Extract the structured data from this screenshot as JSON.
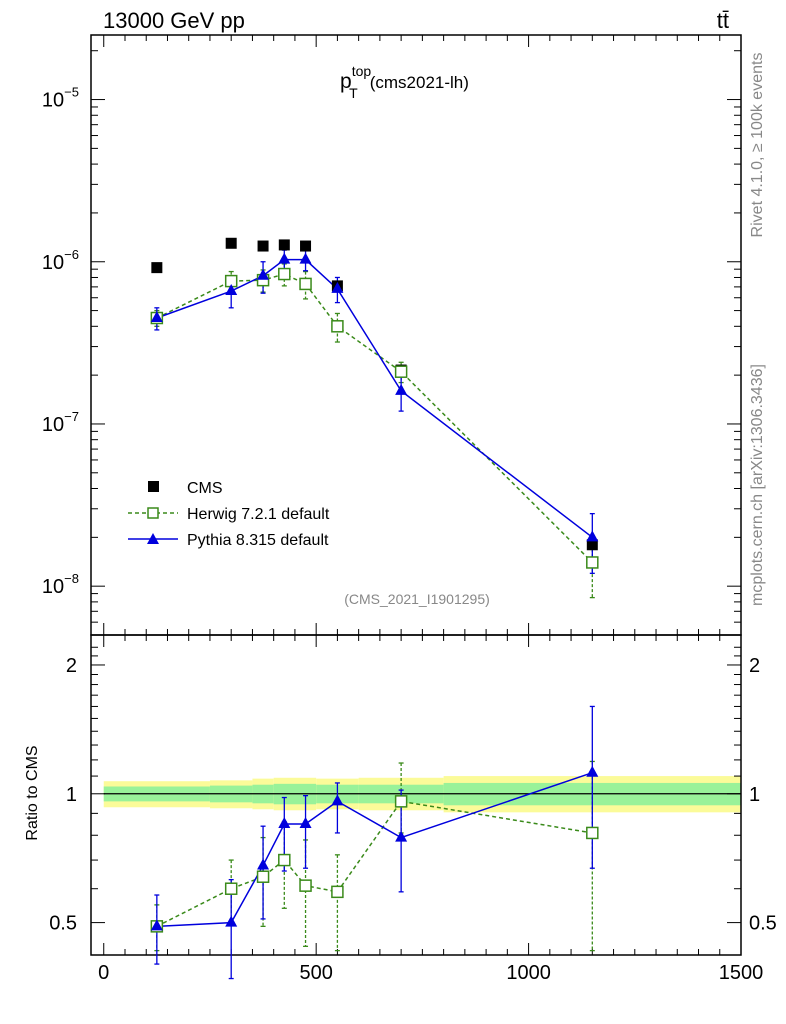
{
  "header": {
    "energy_label": "13000 GeV pp",
    "process_label": "tt̄"
  },
  "side_labels": {
    "rivet": "Rivet 4.1.0, ≥ 100k events",
    "mcplots": "mcplots.cern.ch [arXiv:1306.3436]"
  },
  "plot_title": {
    "main": "p",
    "sup": "top",
    "sub": "T",
    "suffix": "(cms2021-lh)"
  },
  "analysis_tag": "(CMS_2021_I1901295)",
  "colors": {
    "data": "#000000",
    "herwig": "#3a8a1a",
    "pythia": "#0000dd",
    "band_inner": "#99f299",
    "band_outer": "#fbfb99"
  },
  "chart_data": [
    {
      "type": "scatter",
      "panel": "main",
      "xlim": [
        -30,
        1500
      ],
      "ylim": [
        5e-09,
        2.5e-05
      ],
      "yscale": "log",
      "ytick_labels": [
        {
          "value": 1e-08,
          "base": "10",
          "exp": "−8"
        },
        {
          "value": 1e-07,
          "base": "10",
          "exp": "−7"
        },
        {
          "value": 1e-06,
          "base": "10",
          "exp": "−6"
        },
        {
          "value": 1e-05,
          "base": "10",
          "exp": "−5"
        }
      ],
      "legend_position": "lower-left",
      "series": [
        {
          "name": "CMS",
          "style": "square-filled",
          "x": [
            125,
            300,
            375,
            425,
            475,
            550,
            700,
            1150
          ],
          "y": [
            9.2e-07,
            1.3e-06,
            1.25e-06,
            1.27e-06,
            1.25e-06,
            7.1e-07,
            2.15e-07,
            1.8e-08
          ]
        },
        {
          "name": "Herwig 7.2.1 default",
          "style": "square-open-dashed",
          "x": [
            125,
            300,
            375,
            425,
            475,
            550,
            700,
            1150
          ],
          "y": [
            4.5e-07,
            7.6e-07,
            7.7e-07,
            8.4e-07,
            7.3e-07,
            4e-07,
            2.1e-07,
            1.4e-08
          ],
          "err_lo": [
            5e-08,
            1.1e-07,
            1.2e-07,
            1.3e-07,
            1.4e-07,
            8e-08,
            3e-08,
            5.5e-09
          ],
          "err_hi": [
            5e-08,
            1.1e-07,
            1.2e-07,
            1.3e-07,
            1.4e-07,
            8e-08,
            3e-08,
            5.5e-09
          ]
        },
        {
          "name": "Pythia 8.315 default",
          "style": "triangle-filled-solid",
          "x": [
            125,
            300,
            375,
            425,
            475,
            550,
            700,
            1150
          ],
          "y": [
            4.5e-07,
            6.6e-07,
            8.2e-07,
            1.03e-06,
            1.03e-06,
            6.8e-07,
            1.6e-07,
            2e-08
          ],
          "err_lo": [
            7e-08,
            1.4e-07,
            1.8e-07,
            1.5e-07,
            1.5e-07,
            1.2e-07,
            4e-08,
            8e-09
          ],
          "err_hi": [
            7e-08,
            1.4e-07,
            1.8e-07,
            1.5e-07,
            1.5e-07,
            1.2e-07,
            4e-08,
            8e-09
          ]
        }
      ]
    },
    {
      "type": "scatter",
      "panel": "ratio",
      "ylabel": "Ratio to CMS",
      "xlim": [
        -30,
        1500
      ],
      "ylim": [
        0.42,
        2.35
      ],
      "yscale": "log",
      "ytick_labels": [
        {
          "value": 0.5,
          "label": "0.5"
        },
        {
          "value": 1,
          "label": "1"
        },
        {
          "value": 2,
          "label": "2"
        }
      ],
      "xtick_labels": [
        {
          "value": 0,
          "label": "0"
        },
        {
          "value": 500,
          "label": "500"
        },
        {
          "value": 1000,
          "label": "1000"
        },
        {
          "value": 1500,
          "label": "1500"
        }
      ],
      "uncertainty_bands": [
        {
          "x0": 0,
          "x1": 250,
          "inner": [
            0.96,
            1.04
          ],
          "outer": [
            0.93,
            1.07
          ]
        },
        {
          "x0": 250,
          "x1": 350,
          "inner": [
            0.955,
            1.045
          ],
          "outer": [
            0.925,
            1.075
          ]
        },
        {
          "x0": 350,
          "x1": 400,
          "inner": [
            0.95,
            1.05
          ],
          "outer": [
            0.92,
            1.085
          ]
        },
        {
          "x0": 400,
          "x1": 500,
          "inner": [
            0.945,
            1.055
          ],
          "outer": [
            0.915,
            1.09
          ]
        },
        {
          "x0": 500,
          "x1": 600,
          "inner": [
            0.95,
            1.05
          ],
          "outer": [
            0.92,
            1.085
          ]
        },
        {
          "x0": 600,
          "x1": 800,
          "inner": [
            0.95,
            1.05
          ],
          "outer": [
            0.915,
            1.09
          ]
        },
        {
          "x0": 800,
          "x1": 1500,
          "inner": [
            0.94,
            1.06
          ],
          "outer": [
            0.905,
            1.1
          ]
        }
      ],
      "series": [
        {
          "name": "Herwig 7.2.1 default",
          "x": [
            125,
            300,
            375,
            425,
            475,
            550,
            700,
            1150
          ],
          "y": [
            0.49,
            0.6,
            0.64,
            0.7,
            0.61,
            0.59,
            0.96,
            0.81
          ],
          "err_lo": [
            0.06,
            0.1,
            0.15,
            0.16,
            0.17,
            0.16,
            0.15,
            0.38
          ],
          "err_hi": [
            0.06,
            0.1,
            0.15,
            0.16,
            0.17,
            0.13,
            0.22,
            0.38
          ]
        },
        {
          "name": "Pythia 8.315 default",
          "x": [
            125,
            300,
            375,
            425,
            475,
            550,
            700,
            1150
          ],
          "y": [
            0.49,
            0.5,
            0.68,
            0.85,
            0.85,
            0.96,
            0.79,
            1.12
          ],
          "err_lo": [
            0.09,
            0.13,
            0.17,
            0.19,
            0.18,
            0.15,
            0.2,
            0.45
          ],
          "err_hi": [
            0.09,
            0.13,
            0.16,
            0.13,
            0.14,
            0.1,
            0.23,
            0.48
          ]
        }
      ]
    }
  ]
}
